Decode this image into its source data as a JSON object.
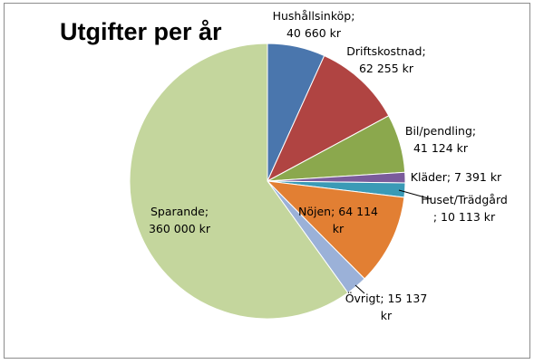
{
  "chart_data": {
    "type": "pie",
    "title": "Utgifter per år",
    "unit": "kr",
    "start_angle_deg": 0,
    "direction": "clockwise",
    "slices": [
      {
        "category": "Hushållsinköp",
        "value": 40660,
        "color": "#4a76ad",
        "label_lines": [
          "Hushållsinköp;",
          "40 660 kr"
        ]
      },
      {
        "category": "Driftskostnad",
        "value": 62255,
        "color": "#b04442",
        "label_lines": [
          "Driftskostnad;",
          "62 255 kr"
        ]
      },
      {
        "category": "Bil/pendling",
        "value": 41124,
        "color": "#8ba84d",
        "label_lines": [
          "Bil/pendling;",
          "41 124 kr"
        ]
      },
      {
        "category": "Kläder",
        "value": 7391,
        "color": "#7a5b9b",
        "label_lines": [
          "Kläder; 7 391 kr"
        ]
      },
      {
        "category": "Huset/Trädgård",
        "value": 10113,
        "color": "#3a9ab6",
        "label_lines": [
          "Huset/Trädgård",
          "; 10 113 kr"
        ]
      },
      {
        "category": "Nöjen",
        "value": 64114,
        "color": "#e27f33",
        "label_lines": [
          "Nöjen; 64 114",
          "kr"
        ]
      },
      {
        "category": "Övrigt",
        "value": 15137,
        "color": "#9bb1d8",
        "label_lines": [
          "Övrigt; 15 137",
          "kr"
        ]
      },
      {
        "category": "Sparande",
        "value": 360000,
        "color": "#c4d69d",
        "label_lines": [
          "Sparande;",
          "360 000 kr"
        ]
      }
    ]
  }
}
